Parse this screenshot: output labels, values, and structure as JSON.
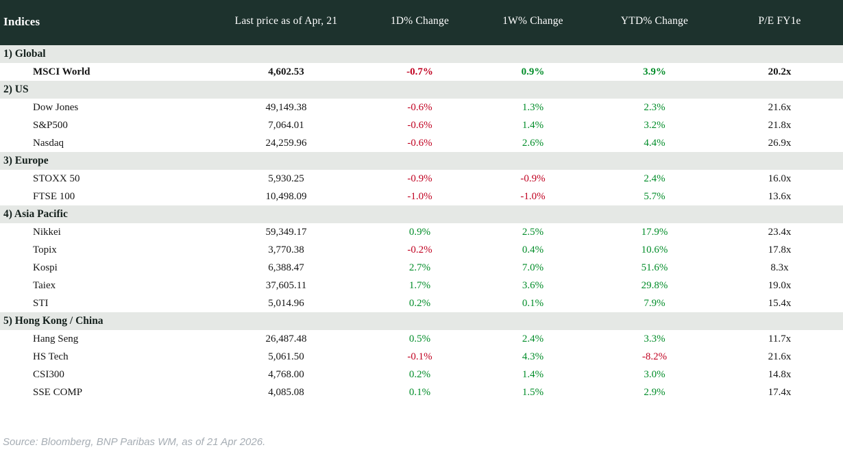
{
  "table": {
    "title": "Indices",
    "columns": [
      "Last price as of Apr, 21",
      "1D% Change",
      "1W% Change",
      "YTD% Change",
      "P/E FY1e"
    ],
    "sections": [
      {
        "label": "1) Global",
        "rows": [
          {
            "name": "MSCI World",
            "price": "4,602.53",
            "d1": "-0.7%",
            "w1": "0.9%",
            "ytd": "3.9%",
            "pe": "20.2x",
            "bold": true
          }
        ]
      },
      {
        "label": "2) US",
        "rows": [
          {
            "name": "Dow Jones",
            "price": "49,149.38",
            "d1": "-0.6%",
            "w1": "1.3%",
            "ytd": "2.3%",
            "pe": "21.6x"
          },
          {
            "name": "S&P500",
            "price": "7,064.01",
            "d1": "-0.6%",
            "w1": "1.4%",
            "ytd": "3.2%",
            "pe": "21.8x"
          },
          {
            "name": "Nasdaq",
            "price": "24,259.96",
            "d1": "-0.6%",
            "w1": "2.6%",
            "ytd": "4.4%",
            "pe": "26.9x"
          }
        ]
      },
      {
        "label": "3) Europe",
        "rows": [
          {
            "name": "STOXX 50",
            "price": "5,930.25",
            "d1": "-0.9%",
            "w1": "-0.9%",
            "ytd": "2.4%",
            "pe": "16.0x"
          },
          {
            "name": "FTSE 100",
            "price": "10,498.09",
            "d1": "-1.0%",
            "w1": "-1.0%",
            "ytd": "5.7%",
            "pe": "13.6x"
          }
        ]
      },
      {
        "label": "4) Asia Pacific",
        "rows": [
          {
            "name": "Nikkei",
            "price": "59,349.17",
            "d1": "0.9%",
            "w1": "2.5%",
            "ytd": "17.9%",
            "pe": "23.4x"
          },
          {
            "name": "Topix",
            "price": "3,770.38",
            "d1": "-0.2%",
            "w1": "0.4%",
            "ytd": "10.6%",
            "pe": "17.8x"
          },
          {
            "name": "Kospi",
            "price": "6,388.47",
            "d1": "2.7%",
            "w1": "7.0%",
            "ytd": "51.6%",
            "pe": "8.3x"
          },
          {
            "name": "Taiex",
            "price": "37,605.11",
            "d1": "1.7%",
            "w1": "3.6%",
            "ytd": "29.8%",
            "pe": "19.0x"
          },
          {
            "name": "STI",
            "price": "5,014.96",
            "d1": "0.2%",
            "w1": "0.1%",
            "ytd": "7.9%",
            "pe": "15.4x"
          }
        ]
      },
      {
        "label": "5) Hong Kong / China",
        "rows": [
          {
            "name": "Hang Seng",
            "price": "26,487.48",
            "d1": "0.5%",
            "w1": "2.4%",
            "ytd": "3.3%",
            "pe": "11.7x"
          },
          {
            "name": "HS Tech",
            "price": "5,061.50",
            "d1": "-0.1%",
            "w1": "4.3%",
            "ytd": "-8.2%",
            "pe": "21.6x"
          },
          {
            "name": "CSI300",
            "price": "4,768.00",
            "d1": "0.2%",
            "w1": "1.4%",
            "ytd": "3.0%",
            "pe": "14.8x"
          },
          {
            "name": "SSE COMP",
            "price": "4,085.08",
            "d1": "0.1%",
            "w1": "1.5%",
            "ytd": "2.9%",
            "pe": "17.4x"
          }
        ]
      }
    ]
  },
  "footer": {
    "source": "Source: Bloomberg, BNP Paribas WM, as of 21 Apr 2026."
  },
  "colors": {
    "header_bg": "#1d322d",
    "section_bg": "#e5e8e5",
    "positive": "#008c28",
    "negative": "#c00020",
    "footer_text": "#a6adb4"
  },
  "chart_data": {
    "type": "table",
    "title": "Indices",
    "columns": [
      "Indices",
      "Last price as of Apr, 21",
      "1D% Change",
      "1W% Change",
      "YTD% Change",
      "P/E FY1e"
    ],
    "groups": [
      {
        "group": "1) Global",
        "rows": [
          [
            "MSCI World",
            4602.53,
            -0.7,
            0.9,
            3.9,
            20.2
          ]
        ]
      },
      {
        "group": "2) US",
        "rows": [
          [
            "Dow Jones",
            49149.38,
            -0.6,
            1.3,
            2.3,
            21.6
          ],
          [
            "S&P500",
            7064.01,
            -0.6,
            1.4,
            3.2,
            21.8
          ],
          [
            "Nasdaq",
            24259.96,
            -0.6,
            2.6,
            4.4,
            26.9
          ]
        ]
      },
      {
        "group": "3) Europe",
        "rows": [
          [
            "STOXX 50",
            5930.25,
            -0.9,
            -0.9,
            2.4,
            16.0
          ],
          [
            "FTSE 100",
            10498.09,
            -1.0,
            -1.0,
            5.7,
            13.6
          ]
        ]
      },
      {
        "group": "4) Asia Pacific",
        "rows": [
          [
            "Nikkei",
            59349.17,
            0.9,
            2.5,
            17.9,
            23.4
          ],
          [
            "Topix",
            3770.38,
            -0.2,
            0.4,
            10.6,
            17.8
          ],
          [
            "Kospi",
            6388.47,
            2.7,
            7.0,
            51.6,
            8.3
          ],
          [
            "Taiex",
            37605.11,
            1.7,
            3.6,
            29.8,
            19.0
          ],
          [
            "STI",
            5014.96,
            0.2,
            0.1,
            7.9,
            15.4
          ]
        ]
      },
      {
        "group": "5) Hong Kong / China",
        "rows": [
          [
            "Hang Seng",
            26487.48,
            0.5,
            2.4,
            3.3,
            11.7
          ],
          [
            "HS Tech",
            5061.5,
            -0.1,
            4.3,
            -8.2,
            21.6
          ],
          [
            "CSI300",
            4768.0,
            0.2,
            1.4,
            3.0,
            14.8
          ],
          [
            "SSE COMP",
            4085.08,
            0.1,
            1.5,
            2.9,
            17.4
          ]
        ]
      }
    ],
    "notes": "Percent changes colored green when positive, red when negative. Source: Bloomberg, BNP Paribas WM, as of 21 Apr 2026."
  }
}
